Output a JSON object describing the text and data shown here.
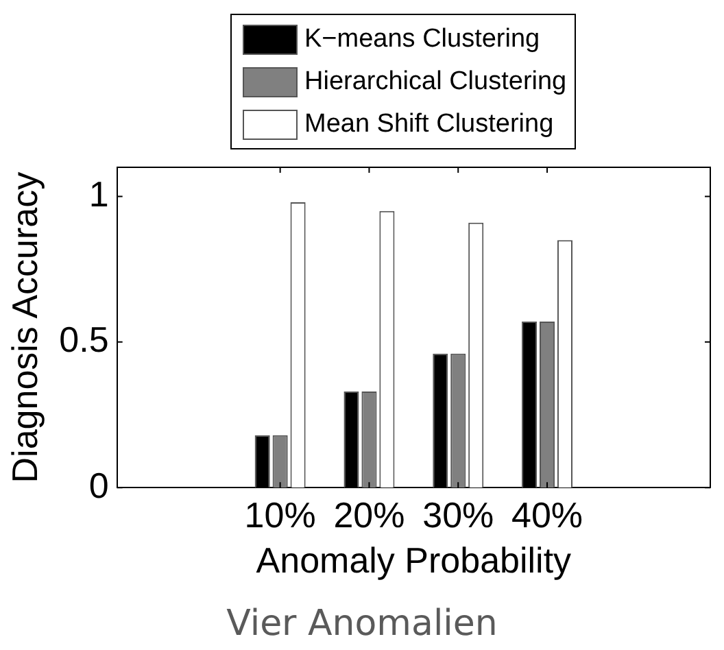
{
  "chart_data": {
    "type": "bar",
    "xlabel": "Anomaly Probability",
    "ylabel": "Diagnosis Accuracy",
    "annotations": [
      "Vier Anomalien"
    ],
    "categories": [
      "10%",
      "20%",
      "30%",
      "40%"
    ],
    "series": [
      {
        "name": "K−means Clustering",
        "color": "#000000",
        "values": [
          0.18,
          0.33,
          0.46,
          0.57
        ]
      },
      {
        "name": "Hierarchical Clustering",
        "color": "#808080",
        "values": [
          0.18,
          0.33,
          0.46,
          0.57
        ]
      },
      {
        "name": "Mean Shift Clustering",
        "color": "#ffffff",
        "values": [
          0.98,
          0.95,
          0.91,
          0.85
        ]
      }
    ],
    "ylim": [
      0,
      1.1
    ],
    "yticks": [
      0,
      0.5,
      1
    ],
    "grid": false,
    "legend": "top"
  }
}
